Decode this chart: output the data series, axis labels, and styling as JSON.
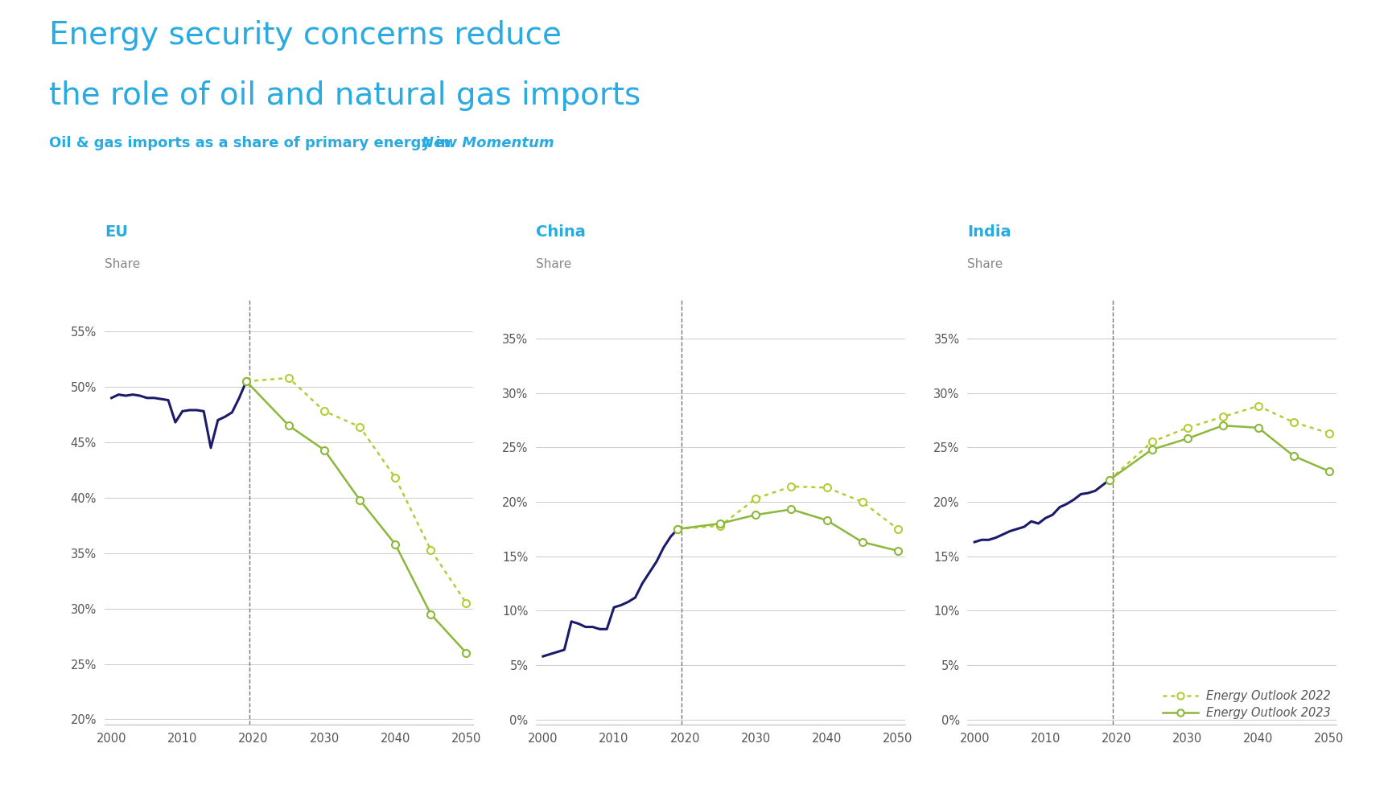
{
  "title_line1": "Energy security concerns reduce",
  "title_line2": "the role of oil and natural gas imports",
  "subtitle_plain": "Oil & gas imports as a share of primary energy in ",
  "subtitle_italic": "New Momentum",
  "panel_labels": [
    "EU",
    "China",
    "India"
  ],
  "share_label": "Share",
  "bg_color": "#ffffff",
  "title_color": "#29ABE2",
  "subtitle_color": "#29ABE2",
  "panel_label_color": "#29ABE2",
  "share_color": "#888888",
  "dark_blue_color": "#1C1B6B",
  "green_2022_color": "#B5CC38",
  "green_2023_color": "#8BB83A",
  "eu_hist_x": [
    2000,
    2001,
    2002,
    2003,
    2004,
    2005,
    2006,
    2007,
    2008,
    2009,
    2010,
    2011,
    2012,
    2013,
    2014,
    2015,
    2016,
    2017,
    2018,
    2019
  ],
  "eu_hist_y": [
    0.49,
    0.493,
    0.492,
    0.493,
    0.492,
    0.49,
    0.49,
    0.489,
    0.488,
    0.468,
    0.478,
    0.479,
    0.479,
    0.478,
    0.445,
    0.47,
    0.473,
    0.477,
    0.49,
    0.505
  ],
  "eu_2022_x": [
    2019,
    2025,
    2030,
    2035,
    2040,
    2045,
    2050
  ],
  "eu_2022_y": [
    0.505,
    0.508,
    0.478,
    0.464,
    0.418,
    0.353,
    0.305
  ],
  "eu_2023_x": [
    2019,
    2025,
    2030,
    2035,
    2040,
    2045,
    2050
  ],
  "eu_2023_y": [
    0.505,
    0.465,
    0.443,
    0.398,
    0.358,
    0.295,
    0.26
  ],
  "china_hist_x": [
    2000,
    2001,
    2002,
    2003,
    2004,
    2005,
    2006,
    2007,
    2008,
    2009,
    2010,
    2011,
    2012,
    2013,
    2014,
    2015,
    2016,
    2017,
    2018,
    2019
  ],
  "china_hist_y": [
    0.058,
    0.06,
    0.062,
    0.064,
    0.09,
    0.088,
    0.085,
    0.085,
    0.083,
    0.083,
    0.103,
    0.105,
    0.108,
    0.112,
    0.125,
    0.135,
    0.145,
    0.158,
    0.168,
    0.175
  ],
  "china_2022_x": [
    2019,
    2025,
    2030,
    2035,
    2040,
    2045,
    2050
  ],
  "china_2022_y": [
    0.175,
    0.178,
    0.203,
    0.214,
    0.213,
    0.2,
    0.175
  ],
  "china_2023_x": [
    2019,
    2025,
    2030,
    2035,
    2040,
    2045,
    2050
  ],
  "china_2023_y": [
    0.175,
    0.18,
    0.188,
    0.193,
    0.183,
    0.163,
    0.155
  ],
  "india_hist_x": [
    2000,
    2001,
    2002,
    2003,
    2004,
    2005,
    2006,
    2007,
    2008,
    2009,
    2010,
    2011,
    2012,
    2013,
    2014,
    2015,
    2016,
    2017,
    2018,
    2019
  ],
  "india_hist_y": [
    0.163,
    0.165,
    0.165,
    0.167,
    0.17,
    0.173,
    0.175,
    0.177,
    0.182,
    0.18,
    0.185,
    0.188,
    0.195,
    0.198,
    0.202,
    0.207,
    0.208,
    0.21,
    0.215,
    0.22
  ],
  "india_2022_x": [
    2019,
    2025,
    2030,
    2035,
    2040,
    2045,
    2050
  ],
  "india_2022_y": [
    0.22,
    0.255,
    0.268,
    0.278,
    0.288,
    0.273,
    0.263
  ],
  "india_2023_x": [
    2019,
    2025,
    2030,
    2035,
    2040,
    2045,
    2050
  ],
  "india_2023_y": [
    0.22,
    0.248,
    0.258,
    0.27,
    0.268,
    0.242,
    0.228
  ],
  "eu_ylim": [
    0.195,
    0.578
  ],
  "eu_yticks": [
    0.2,
    0.25,
    0.3,
    0.35,
    0.4,
    0.45,
    0.5,
    0.55
  ],
  "china_ylim": [
    -0.005,
    0.385
  ],
  "china_yticks": [
    0.0,
    0.05,
    0.1,
    0.15,
    0.2,
    0.25,
    0.3,
    0.35
  ],
  "india_ylim": [
    -0.005,
    0.385
  ],
  "india_yticks": [
    0.0,
    0.05,
    0.1,
    0.15,
    0.2,
    0.25,
    0.3,
    0.35
  ],
  "xlim": [
    1999,
    2051
  ],
  "xticks": [
    2000,
    2010,
    2020,
    2030,
    2040,
    2050
  ],
  "vline_x": 2019.5,
  "legend_label_2022": "Energy Outlook 2022",
  "legend_label_2023": "Energy Outlook 2023"
}
